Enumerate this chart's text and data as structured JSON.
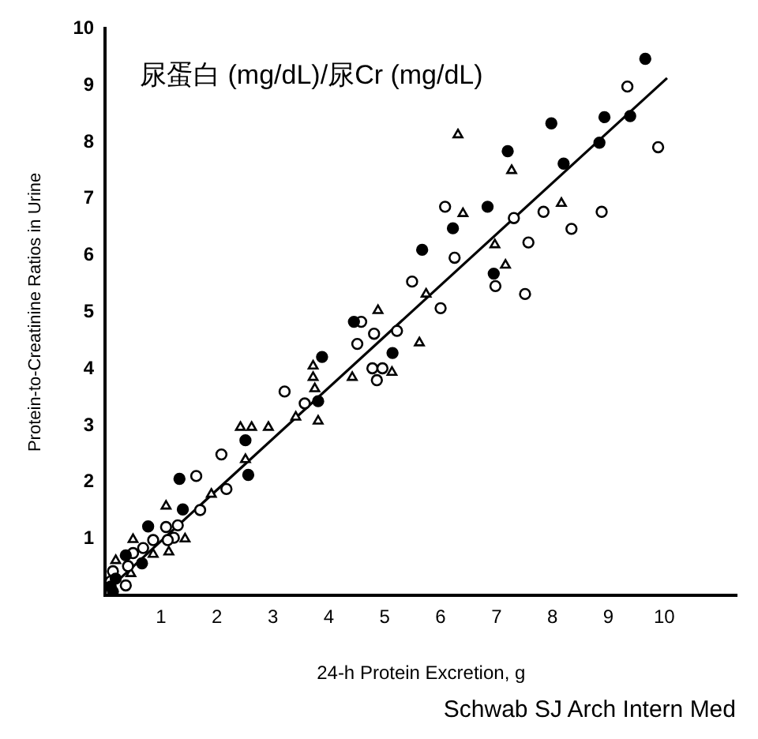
{
  "chart_data": {
    "type": "scatter",
    "xlabel": "24-h Protein Excretion, g",
    "ylabel": "Protein-to-Creatinine Ratios in Urine",
    "annotations": [
      "尿蛋白 (mg/dL)/尿Cr (mg/dL)",
      "Schwab SJ Arch Intern Med"
    ],
    "xlim": [
      0,
      11.3
    ],
    "xticks": [
      1,
      2,
      3,
      4,
      5,
      6,
      7,
      8,
      9,
      10
    ],
    "ylim": [
      0,
      10
    ],
    "yticks": [
      1,
      2,
      3,
      4,
      5,
      6,
      7,
      8,
      9,
      10
    ],
    "grid": false,
    "legend": false,
    "series": [
      {
        "color": "#000000",
        "marker": "circle",
        "x": [
          9.66,
          9.39,
          8.93,
          8.84,
          7.98,
          8.2,
          7.2,
          6.84,
          6.22,
          5.67,
          6.95,
          4.45,
          3.88,
          5.14,
          3.81,
          2.51,
          2.56,
          1.33,
          1.39,
          0.77,
          0.66,
          0.37,
          0.14,
          0.1,
          0.19
        ],
        "values": [
          9.47,
          8.46,
          8.44,
          7.99,
          8.33,
          7.62,
          7.84,
          6.86,
          6.48,
          6.1,
          5.68,
          4.83,
          4.21,
          4.28,
          3.43,
          2.74,
          2.13,
          2.06,
          1.52,
          1.22,
          0.57,
          0.71,
          0.07,
          0.16,
          0.3
        ]
      },
      {
        "color": "#000000",
        "marker": "circle",
        "x": [
          9.34,
          9.89,
          6.08,
          7.31,
          7.84,
          8.88,
          8.34,
          7.57,
          6.25,
          5.49,
          6.98,
          7.51,
          4.58,
          6.0,
          5.22,
          4.81,
          4.51,
          4.78,
          4.96,
          4.86,
          3.21,
          3.57,
          2.08,
          2.17,
          1.63,
          1.7,
          1.09,
          1.3,
          1.23,
          1.12,
          0.86,
          0.68,
          0.5,
          0.41,
          0.37,
          0.14,
          0.1
        ],
        "values": [
          8.98,
          7.91,
          6.86,
          6.66,
          6.77,
          6.77,
          6.47,
          6.23,
          5.96,
          5.54,
          5.46,
          5.32,
          4.83,
          5.07,
          4.67,
          4.62,
          4.44,
          4.01,
          4.01,
          3.8,
          3.6,
          3.39,
          2.49,
          1.88,
          2.11,
          1.51,
          1.21,
          1.24,
          1.02,
          0.98,
          0.98,
          0.84,
          0.75,
          0.52,
          0.18,
          0.43,
          0.25
        ]
      },
      {
        "color": "#000000",
        "marker": "triangle",
        "x": [
          6.31,
          7.27,
          6.4,
          8.16,
          6.97,
          7.16,
          5.74,
          4.88,
          5.62,
          4.42,
          5.13,
          3.72,
          3.72,
          3.75,
          3.81,
          3.41,
          2.92,
          2.42,
          2.62,
          2.51,
          1.9,
          1.09,
          1.43,
          1.14,
          0.86,
          0.5,
          0.46,
          0.19
        ],
        "values": [
          8.13,
          7.5,
          6.74,
          6.92,
          6.19,
          5.83,
          5.32,
          5.03,
          4.46,
          3.85,
          3.94,
          4.05,
          3.85,
          3.65,
          3.08,
          3.15,
          2.97,
          2.97,
          2.97,
          2.4,
          1.79,
          1.58,
          1.0,
          0.77,
          0.73,
          0.99,
          0.39,
          0.62
        ]
      },
      {
        "type": "line",
        "color": "#000000",
        "marker": "none",
        "line_style": "solid",
        "x": [
          0.1,
          10.05
        ],
        "values": [
          0.15,
          9.13
        ]
      }
    ]
  }
}
